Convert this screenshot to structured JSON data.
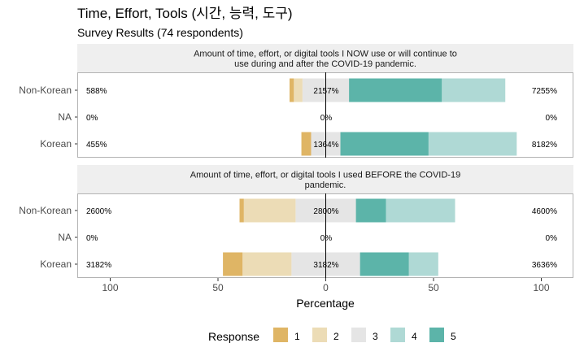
{
  "chart_data": {
    "type": "bar",
    "title": "Time, Effort, Tools (시간, 능력, 도구)",
    "subtitle": "Survey Results (74 respondents)",
    "xlabel": "Percentage",
    "xlim": [
      -100,
      100
    ],
    "x_ticks": [
      -100,
      -50,
      0,
      50,
      100
    ],
    "x_tick_labels": [
      "100",
      "50",
      "0",
      "50",
      "100"
    ],
    "grid": false,
    "legend_title": "Response",
    "legend_position": "bottom",
    "colors": {
      "1": "#dfb565",
      "2": "#ecdcb6",
      "3": "#e5e5e5",
      "4": "#afd9d5",
      "5": "#5cb4a9"
    },
    "legend": [
      {
        "key": "1",
        "label": "1"
      },
      {
        "key": "2",
        "label": "2"
      },
      {
        "key": "3",
        "label": "3"
      },
      {
        "key": "4",
        "label": "4"
      },
      {
        "key": "5",
        "label": "5"
      }
    ],
    "panels": [
      {
        "strip": "Amount of time, effort, or digital tools I NOW use or will continue to use during and after the COVID-19 pandemic.",
        "rows": [
          {
            "label": "Non-Korean",
            "left_pct": "588%",
            "mid_pct": "2157%",
            "right_pct": "7255%",
            "segments": {
              "1": 2,
              "2": 4,
              "3": 21.6,
              "4": 29.4,
              "5": 43.1
            }
          },
          {
            "label": "NA",
            "left_pct": "0%",
            "mid_pct": "0%",
            "right_pct": "0%",
            "segments": {
              "1": 0,
              "2": 0,
              "3": 0,
              "4": 0,
              "5": 0
            }
          },
          {
            "label": "Korean",
            "left_pct": "455%",
            "mid_pct": "1364%",
            "right_pct": "8182%",
            "segments": {
              "1": 4.5,
              "2": 0,
              "3": 13.6,
              "4": 40.9,
              "5": 40.9
            }
          }
        ]
      },
      {
        "strip": "Amount of time, effort, or digital tools I used BEFORE the COVID-19 pandemic.",
        "rows": [
          {
            "label": "Non-Korean",
            "left_pct": "2600%",
            "mid_pct": "2800%",
            "right_pct": "4600%",
            "segments": {
              "1": 2,
              "2": 24,
              "3": 28,
              "4": 32,
              "5": 14
            }
          },
          {
            "label": "NA",
            "left_pct": "0%",
            "mid_pct": "0%",
            "right_pct": "0%",
            "segments": {
              "1": 0,
              "2": 0,
              "3": 0,
              "4": 0,
              "5": 0
            }
          },
          {
            "label": "Korean",
            "left_pct": "3182%",
            "mid_pct": "3182%",
            "right_pct": "3636%",
            "segments": {
              "1": 9.1,
              "2": 22.7,
              "3": 31.8,
              "4": 13.6,
              "5": 22.7
            }
          }
        ]
      }
    ]
  }
}
